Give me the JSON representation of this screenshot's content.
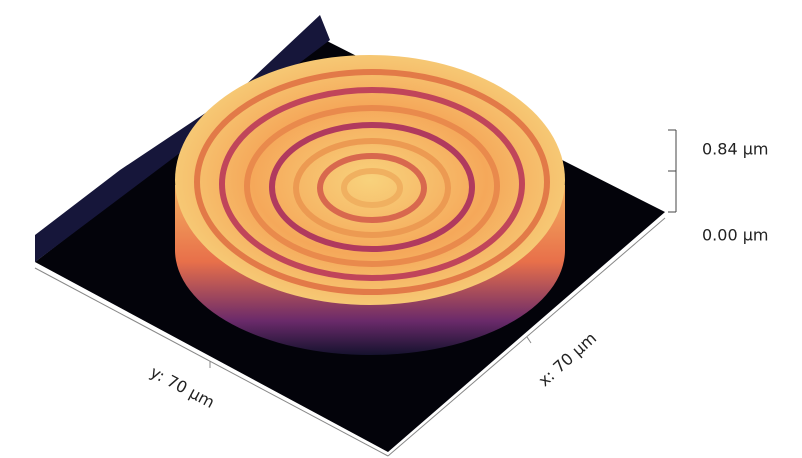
{
  "scale_bar": {
    "top_label": "0.84 µm",
    "bottom_label": "0.00 µm"
  },
  "axes": {
    "y_label": "y: 70 µm",
    "x_label": "x: 70 µm"
  }
}
